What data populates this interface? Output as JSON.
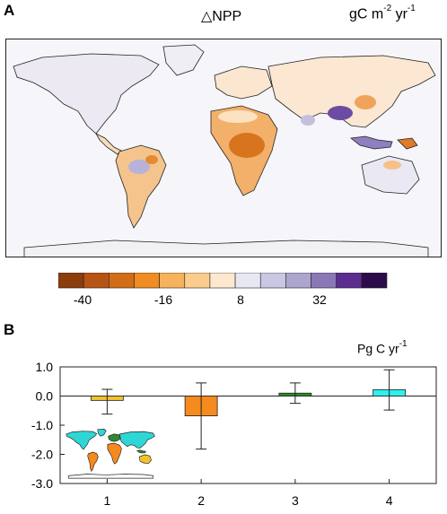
{
  "panel_a": {
    "label": "A",
    "title": "△NPP",
    "units_base": "gC m",
    "units_exp1": "-2",
    "units_mid": " yr",
    "units_exp2": "-1",
    "colorbar": {
      "colors": [
        "#8b3d0c",
        "#b55414",
        "#d16d18",
        "#f08c22",
        "#f6b25c",
        "#fbcc8d",
        "#fde8cf",
        "#e8e8f2",
        "#c9c8e2",
        "#aca6cf",
        "#8a77b7",
        "#5c2d91",
        "#2c0b4a"
      ],
      "tick_labels": [
        "-40",
        "-16",
        "8",
        "32"
      ]
    }
  },
  "panel_b": {
    "label": "B",
    "units_base": "Pg C yr",
    "units_exp": "-1"
  },
  "chart_data": {
    "type": "bar",
    "categories": [
      "1",
      "2",
      "3",
      "4"
    ],
    "values": [
      -0.15,
      -0.68,
      0.1,
      0.22
    ],
    "error_low": [
      -0.62,
      -1.82,
      -0.25,
      -0.48
    ],
    "error_high": [
      0.23,
      0.45,
      0.45,
      0.9
    ],
    "colors": [
      "#f2c22e",
      "#f58a1f",
      "#2e8b2e",
      "#30f0ee"
    ],
    "ylim": [
      -3.0,
      1.0
    ],
    "yticks": [
      "1.0",
      "0.0",
      "-1.0",
      "-2.0",
      "-3.0"
    ],
    "ytick_values": [
      1.0,
      0.0,
      -1.0,
      -2.0,
      -3.0
    ]
  }
}
